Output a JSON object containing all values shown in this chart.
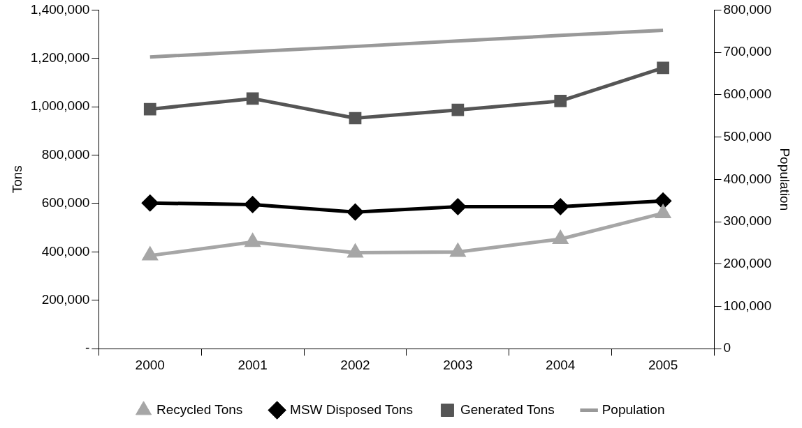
{
  "chart_data": {
    "type": "line",
    "categories": [
      "2000",
      "2001",
      "2002",
      "2003",
      "2004",
      "2005"
    ],
    "ylabel": "Tons",
    "y2label": "Population",
    "ylim": [
      0,
      1400000
    ],
    "yticks": [
      {
        "value": 0,
        "label": "-"
      },
      {
        "value": 200000,
        "label": "200,000"
      },
      {
        "value": 400000,
        "label": "400,000"
      },
      {
        "value": 600000,
        "label": "600,000"
      },
      {
        "value": 800000,
        "label": "800,000"
      },
      {
        "value": 1000000,
        "label": "1,000,000"
      },
      {
        "value": 1200000,
        "label": "1,200,000"
      },
      {
        "value": 1400000,
        "label": "1,400,000"
      }
    ],
    "y2lim": [
      0,
      800000
    ],
    "y2ticks": [
      0,
      {
        "value": 100000,
        "label": "100,000"
      },
      {
        "value": 200000,
        "label": "200,000"
      },
      {
        "value": 300000,
        "label": "300,000"
      },
      {
        "value": 400000,
        "label": "400,000"
      },
      {
        "value": 500000,
        "label": "500,000"
      },
      {
        "value": 600000,
        "label": "600,000"
      },
      {
        "value": 700000,
        "label": "700,000"
      },
      {
        "value": 800000,
        "label": "800,000"
      }
    ],
    "grid": false,
    "legend": "bottom",
    "series": [
      {
        "name": "Recycled Tons",
        "color": "#a6a6a6",
        "marker": "triangle",
        "values": [
          385000,
          441000,
          397000,
          400000,
          453000,
          560000
        ]
      },
      {
        "name": "MSW Disposed Tons",
        "color": "#000000",
        "marker": "diamond",
        "values": [
          602000,
          596000,
          565000,
          587000,
          587000,
          611000
        ]
      },
      {
        "name": "Generated Tons",
        "color": "#555555",
        "marker": "square",
        "values": [
          990000,
          1034000,
          953000,
          987000,
          1024000,
          1161000
        ]
      },
      {
        "name": "Population",
        "color": "#999999",
        "marker": "none",
        "axis": "y2",
        "values": [
          689000,
          702000,
          714000,
          727000,
          740000,
          752000
        ]
      }
    ]
  }
}
